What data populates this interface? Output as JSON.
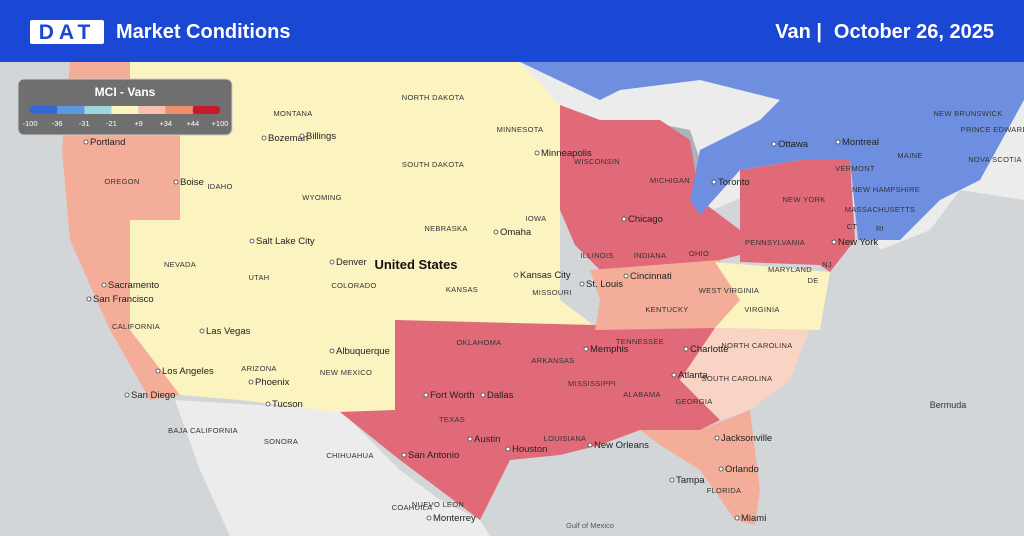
{
  "header": {
    "logo": "DAT",
    "title": "Market Conditions",
    "equipment": "Van |",
    "date": "October 26, 2025"
  },
  "legend": {
    "title": "MCI - Vans",
    "ticks": [
      "-100",
      "-36",
      "-31",
      "-21",
      "+9",
      "+34",
      "+44",
      "+100"
    ],
    "colors": [
      "#3566d6",
      "#5c9ae0",
      "#9fd6e0",
      "#fbf3c0",
      "#f7c0b0",
      "#f08f6e",
      "#c9182c"
    ]
  },
  "map": {
    "country": "United States",
    "states": [
      "MONTANA",
      "NORTH DAKOTA",
      "MINNESOTA",
      "WISCONSIN",
      "MICHIGAN",
      "SOUTH DAKOTA",
      "WYOMING",
      "IDAHO",
      "OREGON",
      "NEBRASKA",
      "IOWA",
      "NEVADA",
      "UTAH",
      "COLORADO",
      "KANSAS",
      "MISSOURI",
      "ILLINOIS",
      "INDIANA",
      "OHIO",
      "PENNSYLVANIA",
      "NEW YORK",
      "CALIFORNIA",
      "ARIZONA",
      "NEW MEXICO",
      "OKLAHOMA",
      "ARKANSAS",
      "TENNESSEE",
      "KENTUCKY",
      "WEST VIRGINIA",
      "VIRGINIA",
      "MARYLAND",
      "DE",
      "NORTH CAROLINA",
      "SOUTH CAROLINA",
      "GEORGIA",
      "ALABAMA",
      "MISSISSIPPI",
      "LOUISIANA",
      "TEXAS",
      "FLORIDA",
      "VERMONT",
      "NEW HAMPSHIRE",
      "MAINE",
      "MASSACHUSETTS",
      "CT",
      "RI",
      "NJ",
      "NEW BRUNSWICK",
      "NOVA SCOTIA",
      "PRINCE EDWARD ISLAND",
      "BAJA CALIFORNIA",
      "SONORA",
      "CHIHUAHUA",
      "COAHUILA",
      "NUEVO LEON"
    ],
    "cities": [
      "Portland",
      "Boise",
      "Bozeman",
      "Billings",
      "Minneapolis",
      "Salt Lake City",
      "Denver",
      "Omaha",
      "Kansas City",
      "Chicago",
      "Toronto",
      "Ottawa",
      "Montreal",
      "New York",
      "Sacramento",
      "San Francisco",
      "Las Vegas",
      "Albuquerque",
      "Los Angeles",
      "Phoenix",
      "Tucson",
      "San Diego",
      "St. Louis",
      "Cincinnati",
      "Charlotte",
      "Memphis",
      "Atlanta",
      "Fort Worth",
      "Dallas",
      "Austin",
      "Houston",
      "San Antonio",
      "New Orleans",
      "Jacksonville",
      "Orlando",
      "Tampa",
      "Miami",
      "Monterrey"
    ],
    "water": [
      "Bermuda",
      "Gulf of Mexico"
    ]
  }
}
